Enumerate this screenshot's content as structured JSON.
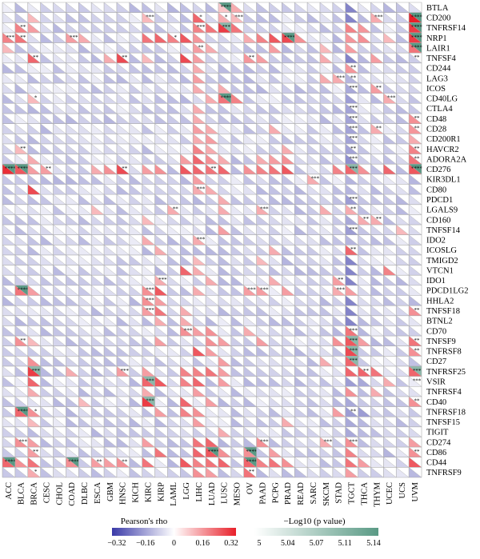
{
  "chart_data": {
    "type": "heatmap",
    "cell_style": "each cell split diagonally: lower triangle colored by Pearson's rho, upper triangle colored by -Log10(p value); asterisks mark significance",
    "rows": [
      "BTLA",
      "CD200",
      "TNFRSF14",
      "NRP1",
      "LAIR1",
      "TNFSF4",
      "CD244",
      "LAG3",
      "ICOS",
      "CD40LG",
      "CTLA4",
      "CD48",
      "CD28",
      "CD200R1",
      "HAVCR2",
      "ADORA2A",
      "CD276",
      "KIR3DL1",
      "CD80",
      "PDCD1",
      "LGALS9",
      "CD160",
      "TNFSF14",
      "IDO2",
      "ICOSLG",
      "TMIGD2",
      "VTCN1",
      "IDO1",
      "PDCD1LG2",
      "HHLA2",
      "TNFSF18",
      "BTNL2",
      "CD70",
      "TNFSF9",
      "TNFRSF8",
      "CD27",
      "TNFRSF25",
      "VSIR",
      "TNFRSF4",
      "CD40",
      "TNFRSF18",
      "TNFSF15",
      "TIGIT",
      "CD274",
      "CD86",
      "CD44",
      "TNFRSF9"
    ],
    "columns": [
      "ACC",
      "BLCA",
      "BRCA",
      "CESC",
      "CHOL",
      "COAD",
      "DLBC",
      "ESCA",
      "GBM",
      "HNSC",
      "KICH",
      "KIRC",
      "KIRP",
      "LAML",
      "LGG",
      "LIHC",
      "LUAD",
      "LUSC",
      "MESO",
      "OV",
      "PAAD",
      "PCPG",
      "PRAD",
      "READ",
      "SARC",
      "SKCM",
      "STAD",
      "TGCT",
      "THCA",
      "THYM",
      "UCEC",
      "UCS",
      "UVM"
    ],
    "legend_rho": {
      "title": "Pearson's rho",
      "ticks": [
        "−0.32",
        "−0.16",
        "0",
        "0.16",
        "0.32"
      ],
      "range": [
        -0.32,
        0.32
      ]
    },
    "legend_p": {
      "title": "−Log10 (p value)",
      "ticks": [
        "5",
        "5.04",
        "5.07",
        "5.11",
        "5.14"
      ],
      "range": [
        5,
        5.14
      ]
    },
    "colors": {
      "negative": "#3a3aa8",
      "neutral": "#ffffff",
      "positive": "#e8202a",
      "p_low": "#ffffff",
      "p_high": "#5a9a85",
      "grid": "#aaaaaa"
    },
    "values": {
      "BTLA": {
        "LUSC": 0.08,
        "MESO": 0.12
      },
      "CD200": {
        "BRCA": 0.1,
        "KIRC": 0.1,
        "LIHC": 0.22,
        "LUSC": 0.12,
        "MESO": 0.1,
        "THYM": 0.12,
        "UVM": 0.32
      },
      "TNFRSF14": {
        "BLCA": 0.18,
        "BRCA": 0.14,
        "LIHC": 0.18,
        "LUAD": 0.2,
        "LUSC": 0.28,
        "MESO": 0.2,
        "TGCT": 0.18,
        "THCA": 0.15,
        "UVM": 0.28
      },
      "NRP1": {
        "ACC": 0.18,
        "BLCA": 0.2,
        "COAD": 0.14,
        "DLBC": 0.12,
        "KIRC": 0.2,
        "KIRP": 0.22,
        "LAML": 0.18,
        "LGG": 0.24,
        "LIHC": 0.15,
        "OV": 0.12,
        "PAAD": 0.18,
        "PCPG": 0.24,
        "PRAD": 0.26,
        "READ": 0.16,
        "TGCT": 0.15,
        "THCA": 0.16,
        "UCEC": 0.1,
        "UVM": 0.28
      },
      "LAIR1": {
        "ACC": 0.1,
        "LIHC": 0.14,
        "LUAD": 0.12,
        "PCPG": 0.14,
        "SKCM": 0.1,
        "TGCT": 0.14,
        "UVM": 0.2
      },
      "TNFSF4": {
        "BRCA": 0.22,
        "HNSC": 0.26,
        "GBM": 0.12,
        "KIRC": 0.1,
        "LGG": 0.26,
        "LIHC": 0.14,
        "OV": 0.15,
        "PAAD": 0.14,
        "SKCM": 0.12,
        "THYM": 0.14
      },
      "CD244": {
        "LIHC": 0.12,
        "TGCT": 0.15
      },
      "LAG3": {
        "LIHC": 0.14,
        "TGCT": -0.12,
        "STAD": 0.12,
        "SKCM": 0.12
      },
      "ICOS": {
        "LIHC": 0.12,
        "LUSC": 0.12,
        "TGCT": -0.14,
        "THYM": 0.14
      },
      "CD40LG": {
        "BRCA": 0.1,
        "LUAD": 0.12,
        "LUSC": 0.2,
        "MESO": 0.18,
        "TGCT": -0.16,
        "UCEC": 0.12
      },
      "CTLA4": {
        "LIHC": 0.12,
        "TGCT": -0.15
      },
      "CD48": {
        "LIHC": 0.12,
        "TGCT": -0.15,
        "UVM": 0.16
      },
      "CD28": {
        "LIHC": 0.14,
        "LUAD": 0.12,
        "PCPG": 0.12,
        "TGCT": -0.15,
        "THYM": 0.12,
        "UVM": 0.15
      },
      "CD200R1": {
        "LIHC": 0.12,
        "LUAD": 0.14,
        "TGCT": -0.15,
        "UVM": 0.12
      },
      "HAVCR2": {
        "BLCA": 0.1,
        "LIHC": 0.18,
        "LUAD": 0.12,
        "PRAD": 0.12,
        "TGCT": -0.15,
        "UVM": 0.18
      },
      "ADORA2A": {
        "BRCA": 0.12,
        "LGG": 0.14,
        "LIHC": 0.22,
        "LUAD": 0.16,
        "LUSC": 0.12,
        "PAAD": 0.12,
        "PCPG": 0.14,
        "PRAD": 0.16,
        "TGCT": -0.18,
        "UVM": 0.2
      },
      "CD276": {
        "ACC": 0.3,
        "BLCA": 0.24,
        "BRCA": 0.14,
        "CESC": 0.14,
        "ESCA": 0.12,
        "GBM": 0.16,
        "HNSC": 0.26,
        "KIRC": 0.14,
        "KIRP": 0.16,
        "LGG": 0.24,
        "LIHC": 0.22,
        "LUAD": 0.2,
        "LUSC": 0.22,
        "OV": 0.16,
        "PAAD": 0.18,
        "PCPG": 0.2,
        "PRAD": 0.24,
        "STAD": 0.18,
        "TGCT": 0.22,
        "THCA": 0.16,
        "UCEC": 0.22,
        "UVM": 0.24
      },
      "KIR3DL1": {
        "LIHC": 0.14,
        "SARC": 0.12,
        "TGCT": -0.12
      },
      "CD80": {
        "BRCA": 0.26,
        "LIHC": 0.12,
        "LUAD": 0.12,
        "TGCT": -0.12
      },
      "PDCD1": {
        "LUSC": 0.12,
        "TGCT": -0.16
      },
      "LGALS9": {
        "ESCA": 0.1,
        "LAML": 0.12,
        "LUSC": 0.12,
        "PAAD": 0.12,
        "SKCM": 0.12,
        "TGCT": 0.12
      },
      "CD160": {
        "KIRC": 0.1,
        "TGCT": -0.14,
        "THCA": 0.12,
        "THYM": 0.12
      },
      "TNFSF14": {
        "LUSC": 0.14,
        "TGCT": -0.16,
        "UCS": 0.1
      },
      "IDO2": {
        "KIRC": 0.12,
        "LIHC": 0.12,
        "TGCT": -0.12
      },
      "ICOSLG": {
        "KIRP": 0.12,
        "PCPG": 0.12,
        "TGCT": 0.22
      },
      "TMIGD2": {
        "LIHC": 0.1,
        "PAAD": 0.1
      },
      "VTCN1": {
        "LGG": 0.22,
        "LIHC": 0.12,
        "UCEC": 0.18
      },
      "IDO1": {
        "KIRP": 0.12,
        "LUAD": 0.12,
        "PCPG": 0.12,
        "STAD": 0.14
      },
      "PDCD1LG2": {
        "BLCA": 0.2,
        "BRCA": 0.14,
        "KIRC": 0.16,
        "KIRP": 0.24,
        "LIHC": 0.12,
        "OV": 0.14,
        "PAAD": 0.14,
        "PRAD": 0.14,
        "STAD": 0.12,
        "TGCT": 0.14
      },
      "HHLA2": {
        "KIRC": 0.16,
        "KIRP": 0.14
      },
      "TNFSF18": {
        "KIRC": 0.14,
        "KIRP": 0.2,
        "LGG": 0.12,
        "UVM": 0.16
      },
      "BTNL2": {
        "KIRP": 0.12,
        "LGG": 0.12
      },
      "CD70": {
        "LGG": 0.16,
        "LIHC": 0.14,
        "LUAD": 0.16,
        "OV": 0.12,
        "TGCT": 0.2
      },
      "TNFSF9": {
        "BLCA": 0.16,
        "BRCA": 0.1,
        "KIRP": 0.14,
        "LUAD": 0.16,
        "LUSC": 0.14,
        "PAAD": 0.14,
        "STAD": 0.16,
        "TGCT": 0.24,
        "THCA": 0.14,
        "UVM": 0.2
      },
      "TNFRSF8": {
        "LIHC": 0.24,
        "LUAD": 0.14,
        "TGCT": 0.26,
        "UVM": 0.16
      },
      "CD27": {
        "BRCA": 0.16,
        "LUSC": 0.14,
        "TGCT": 0.22,
        "SKCM": 0.12
      },
      "TNFRSF25": {
        "BRCA": 0.28,
        "COAD": 0.12,
        "HNSC": 0.14,
        "KIRC": 0.14,
        "LGG": 0.18,
        "LIHC": 0.18,
        "LUAD": 0.2,
        "LUSC": 0.14,
        "TGCT": 0.22,
        "THCA": 0.22,
        "THYM": 0.2,
        "UVM": 0.22
      },
      "VSIR": {
        "BRCA": 0.22,
        "KIRC": 0.22,
        "KIRP": 0.24,
        "LGG": 0.18,
        "LIHC": 0.22,
        "LUSC": 0.14,
        "TGCT": -0.16,
        "THCA": -0.14,
        "UCEC": 0.12
      },
      "TNFRSF4": {
        "BRCA": 0.12,
        "KIRC": 0.12,
        "LIHC": 0.14,
        "TGCT": 0.16,
        "THYM": 0.12
      },
      "CD40": {
        "DLBC": 0.1,
        "KIRC": 0.28,
        "LGG": 0.22,
        "LUAD": 0.14,
        "TGCT": -0.14,
        "UVM": 0.16
      },
      "TNFRSF18": {
        "BLCA": 0.22,
        "BRCA": 0.16,
        "KIRP": 0.14,
        "LGG": 0.18,
        "LIHC": 0.16,
        "STAD": 0.14,
        "TGCT": -0.16,
        "THCA": -0.16
      },
      "TNFSF15": {
        "BRCA": 0.1,
        "LIHC": 0.14,
        "PRAD": 0.12,
        "TGCT": -0.14
      },
      "TIGIT": {
        "LUSC": 0.12,
        "TGCT": -0.14
      },
      "CD274": {
        "BLCA": 0.16,
        "BRCA": 0.14,
        "KIRC": 0.14,
        "LIHC": 0.2,
        "LUAD": 0.22,
        "PAAD": 0.16,
        "SKCM": 0.12,
        "TGCT": 0.16,
        "UVM": 0.14
      },
      "CD86": {
        "BRCA": 0.14,
        "KIRP": 0.2,
        "LIHC": 0.22,
        "LUAD": 0.24,
        "LUSC": 0.16,
        "OV": 0.16,
        "PCPG": 0.14,
        "TGCT": 0.18,
        "UVM": 0.16
      },
      "CD44": {
        "ACC": 0.22,
        "BLCA": 0.16,
        "BRCA": 0.2,
        "COAD": 0.16,
        "ESCA": 0.14,
        "GBM": 0.14,
        "HNSC": 0.16,
        "KIRC": 0.2,
        "LGG": 0.24,
        "LIHC": 0.18,
        "LUAD": 0.2,
        "LUSC": 0.22,
        "OV": 0.22,
        "PAAD": 0.18,
        "PCPG": 0.2,
        "PRAD": 0.16,
        "TGCT": 0.2,
        "THCA": 0.14,
        "UVM": 0.24
      },
      "TNFRSF9": {
        "BRCA": 0.12,
        "LIHC": 0.16,
        "LUAD": 0.14,
        "OV": 0.2,
        "TGCT": 0.14
      }
    },
    "stars": {
      "BTLA": {
        "LUSC": "****"
      },
      "CD200": {
        "KIRC": "***",
        "LIHC": "*",
        "LUSC": "*",
        "MESO": "***",
        "THYM": "***",
        "UVM": "****"
      },
      "TNFRSF14": {
        "BLCA": "**",
        "LIHC": "***",
        "LUSC": "***",
        "UVM": "****"
      },
      "NRP1": {
        "ACC": "***",
        "BLCA": "**",
        "COAD": "***",
        "LAML": "*",
        "PRAD": "****",
        "UVM": "****"
      },
      "LAIR1": {
        "LIHC": "**",
        "UVM": "****"
      },
      "TNFSF4": {
        "BRCA": "**",
        "HNSC": "**",
        "OV": "**",
        "UVM": "**"
      },
      "CD244": {
        "TGCT": "**"
      },
      "LAG3": {
        "TGCT": "**",
        "STAD": "***"
      },
      "ICOS": {
        "TGCT": "***",
        "THYM": "**"
      },
      "CD40LG": {
        "BRCA": "*",
        "LUSC": "****",
        "UCEC": "***"
      },
      "CTLA4": {
        "TGCT": "***"
      },
      "CD48": {
        "TGCT": "***",
        "UVM": "**"
      },
      "CD28": {
        "TGCT": "***",
        "THYM": "**",
        "UVM": "**"
      },
      "CD200R1": {
        "TGCT": "***"
      },
      "HAVCR2": {
        "BLCA": "**",
        "TGCT": "**",
        "UVM": "**"
      },
      "ADORA2A": {
        "TGCT": "***",
        "UVM": "**"
      },
      "CD276": {
        "ACC": "****",
        "BLCA": "****",
        "CESC": "**",
        "HNSC": "**",
        "LUAD": "**",
        "TGCT": "***",
        "UVM": "****"
      },
      "KIR3DL1": {
        "SARC": "***"
      },
      "CD80": {
        "LIHC": "***"
      },
      "PDCD1": {
        "TGCT": "***"
      },
      "LGALS9": {
        "LAML": "**",
        "PAAD": "***",
        "TGCT": "**"
      },
      "CD160": {
        "THCA": "**",
        "THYM": "**"
      },
      "TNFSF14": {
        "TGCT": "***"
      },
      "IDO2": {
        "LIHC": "***"
      },
      "ICOSLG": {
        "TGCT": "**"
      },
      "IDO1": {
        "KIRP": "***",
        "STAD": "**"
      },
      "PDCD1LG2": {
        "BLCA": "****",
        "KIRC": "***",
        "OV": "***",
        "PAAD": "***",
        "STAD": "***"
      },
      "HHLA2": {
        "KIRC": "***"
      },
      "TNFSF18": {
        "KIRC": "***",
        "UVM": "**"
      },
      "CD70": {
        "LGG": "***",
        "TGCT": "***"
      },
      "TNFSF9": {
        "BLCA": "**",
        "TGCT": "***",
        "UVM": "**"
      },
      "TNFRSF8": {
        "TGCT": "***",
        "UVM": "**"
      },
      "CD27": {
        "TGCT": "***"
      },
      "TNFRSF25": {
        "BRCA": "***",
        "HNSC": "***",
        "THCA": "**",
        "UVM": "***"
      },
      "VSIR": {
        "KIRC": "***",
        "UVM": "***"
      },
      "CD40": {
        "KIRC": "***",
        "UVM": "**"
      },
      "TNFRSF18": {
        "BLCA": "****",
        "BRCA": "*",
        "TGCT": "**"
      },
      "CD274": {
        "BLCA": "***",
        "PAAD": "***",
        "SKCM": "***",
        "TGCT": "***"
      },
      "CD86": {
        "BRCA": "**",
        "LUAD": "****",
        "OV": "****",
        "UVM": "**"
      },
      "CD44": {
        "ACC": "****",
        "COAD": "****",
        "ESCA": "**",
        "HNSC": "**",
        "OV": "****"
      },
      "TNFRSF9": {
        "BRCA": "*",
        "OV": "**"
      }
    }
  }
}
